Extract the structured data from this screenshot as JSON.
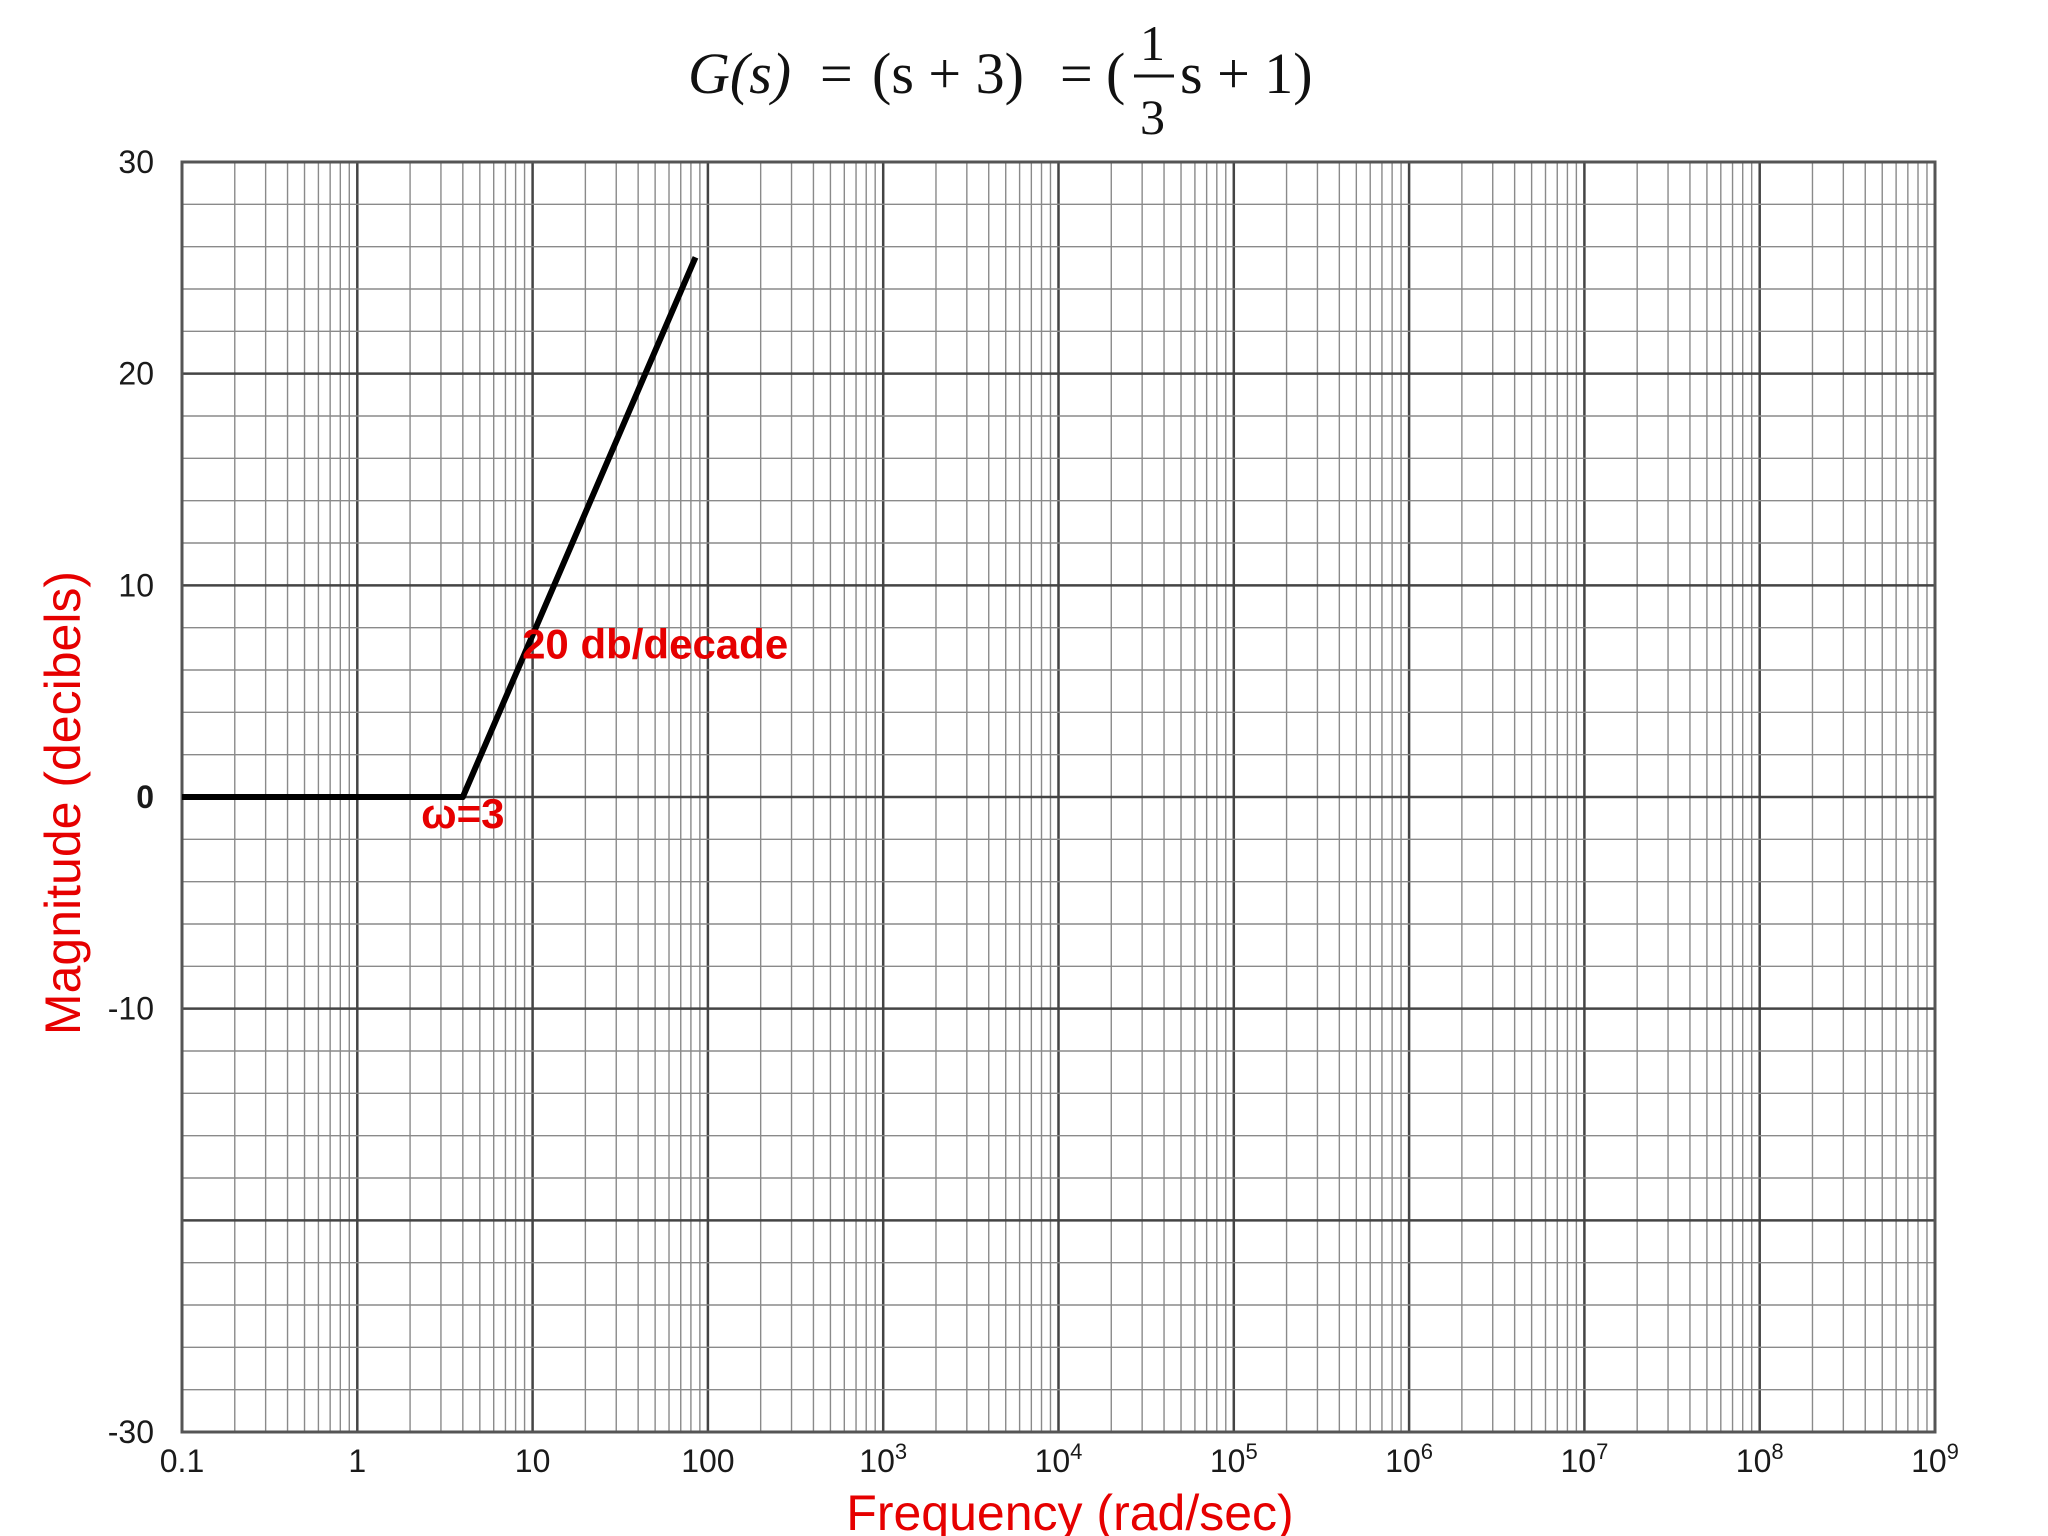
{
  "chart_data": {
    "type": "line",
    "title_parts": {
      "lhs": "G(s)",
      "eq1": "=",
      "mid": "(s + 3)",
      "eq2": "=",
      "open": "(",
      "numerator": "1",
      "denominator": "3",
      "rest": "s + 1)"
    },
    "xlabel": "Frequency (rad/sec)",
    "ylabel": "Magnitude (decibels)",
    "x_scale": "log",
    "xlim": [
      0.1,
      1000000000
    ],
    "ylim": [
      -30,
      30
    ],
    "x_ticks": [
      {
        "label": "0.1",
        "base": "",
        "exp": ""
      },
      {
        "label": "1",
        "base": "",
        "exp": ""
      },
      {
        "label": "10",
        "base": "",
        "exp": ""
      },
      {
        "label": "100",
        "base": "",
        "exp": ""
      },
      {
        "label": "",
        "base": "10",
        "exp": "3"
      },
      {
        "label": "",
        "base": "10",
        "exp": "4"
      },
      {
        "label": "",
        "base": "10",
        "exp": "5"
      },
      {
        "label": "",
        "base": "10",
        "exp": "6"
      },
      {
        "label": "",
        "base": "10",
        "exp": "7"
      },
      {
        "label": "",
        "base": "10",
        "exp": "8"
      },
      {
        "label": "",
        "base": "10",
        "exp": "9"
      }
    ],
    "y_ticks": [
      {
        "value": 30,
        "label": "30",
        "bold": false
      },
      {
        "value": 20,
        "label": "20",
        "bold": false
      },
      {
        "value": 10,
        "label": "10",
        "bold": false
      },
      {
        "value": 0,
        "label": "0",
        "bold": true
      },
      {
        "value": -10,
        "label": "-10",
        "bold": false
      },
      {
        "value": -30,
        "label": "-30",
        "bold": false
      }
    ],
    "grid": true,
    "series": [
      {
        "points": [
          {
            "x": 0.1,
            "y": 0
          },
          {
            "x": 4,
            "y": 0
          },
          {
            "x": 85,
            "y": 25.5
          }
        ],
        "color": "#000000"
      }
    ],
    "annotations": [
      {
        "text": "ω=3",
        "x": 4,
        "y": -0.8
      },
      {
        "text": "20 db/decade",
        "x": 50,
        "y": 7.2
      }
    ]
  }
}
